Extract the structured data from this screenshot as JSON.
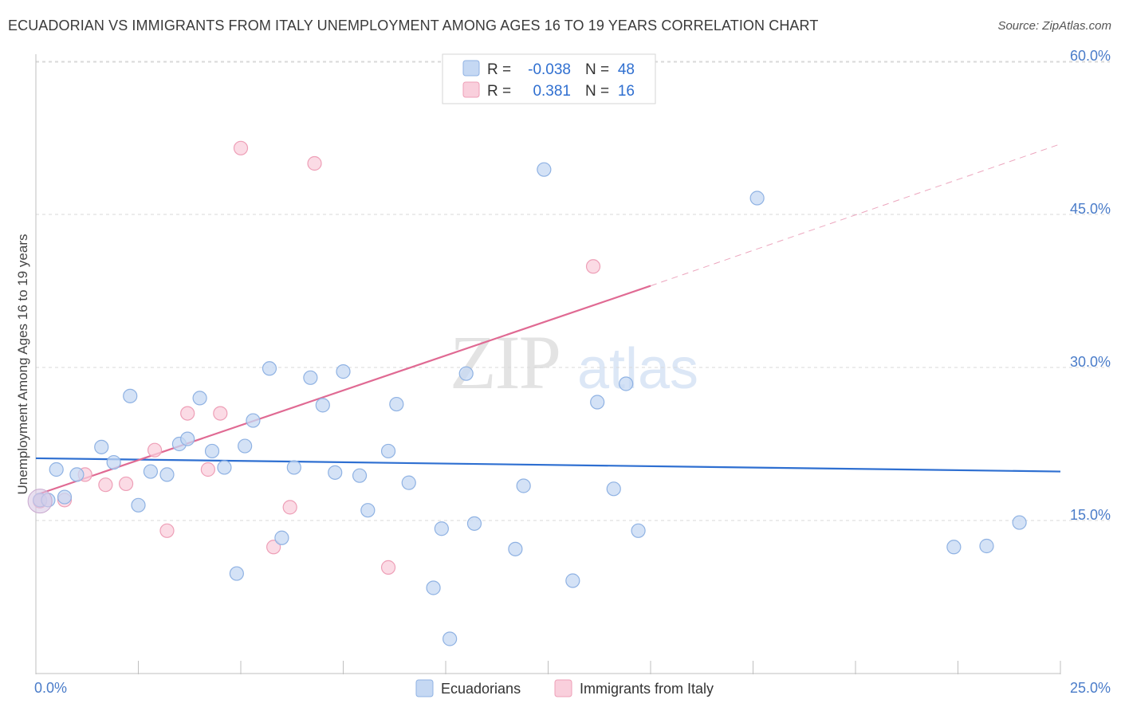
{
  "header": {
    "title": "ECUADORIAN VS IMMIGRANTS FROM ITALY UNEMPLOYMENT AMONG AGES 16 TO 19 YEARS CORRELATION CHART",
    "source": "Source: ZipAtlas.com"
  },
  "watermark": {
    "zip": "ZIP",
    "atlas": "atlas"
  },
  "colors": {
    "blue_fill": "#c5d8f3",
    "blue_stroke": "#8fb2e3",
    "blue_line": "#2e6fd1",
    "pink_fill": "#f9cfdc",
    "pink_stroke": "#ee9fb7",
    "pink_line": "#e06a93",
    "tick_text": "#4a7cc9",
    "grid": "#d9d9d9"
  },
  "legend": {
    "rows": [
      {
        "r_label": "R =",
        "r_value": "-0.038",
        "n_label": "N =",
        "n_value": "48"
      },
      {
        "r_label": "R =",
        "r_value": "0.381",
        "n_label": "N =",
        "n_value": "16"
      }
    ]
  },
  "chart_data": {
    "type": "scatter",
    "title": "ECUADORIAN VS IMMIGRANTS FROM ITALY UNEMPLOYMENT AMONG AGES 16 TO 19 YEARS CORRELATION CHART",
    "xlabel": "",
    "ylabel": "Unemployment Among Ages 16 to 19 years",
    "xlim": [
      0,
      25
    ],
    "ylim": [
      0,
      60
    ],
    "x_tick_labels": [
      "0.0%",
      "25.0%"
    ],
    "y_ticks": [
      15,
      30,
      45,
      60
    ],
    "y_tick_labels": [
      "15.0%",
      "30.0%",
      "45.0%",
      "60.0%"
    ],
    "grid": true,
    "series": [
      {
        "name": "Ecuadorians",
        "r": -0.038,
        "n": 48,
        "trend": {
          "x": [
            0,
            25
          ],
          "y": [
            21.1,
            19.8
          ],
          "dashed_extension": false
        },
        "points": [
          [
            0.1,
            17.0
          ],
          [
            0.3,
            17.0
          ],
          [
            0.5,
            20.0
          ],
          [
            0.7,
            17.3
          ],
          [
            1.0,
            19.5
          ],
          [
            1.6,
            22.2
          ],
          [
            1.9,
            20.7
          ],
          [
            2.3,
            27.2
          ],
          [
            2.5,
            16.5
          ],
          [
            2.8,
            19.8
          ],
          [
            3.2,
            19.5
          ],
          [
            3.5,
            22.5
          ],
          [
            3.7,
            23.0
          ],
          [
            4.0,
            27.0
          ],
          [
            4.3,
            21.8
          ],
          [
            4.6,
            20.2
          ],
          [
            4.9,
            9.8
          ],
          [
            5.1,
            22.3
          ],
          [
            5.3,
            24.8
          ],
          [
            5.7,
            29.9
          ],
          [
            6.0,
            13.3
          ],
          [
            6.3,
            20.2
          ],
          [
            6.7,
            29.0
          ],
          [
            7.0,
            26.3
          ],
          [
            7.3,
            19.7
          ],
          [
            7.5,
            29.6
          ],
          [
            7.9,
            19.4
          ],
          [
            8.1,
            16.0
          ],
          [
            8.6,
            21.8
          ],
          [
            8.8,
            26.4
          ],
          [
            9.1,
            18.7
          ],
          [
            9.7,
            8.4
          ],
          [
            9.9,
            14.2
          ],
          [
            10.1,
            3.4
          ],
          [
            10.5,
            29.4
          ],
          [
            10.7,
            14.7
          ],
          [
            11.7,
            12.2
          ],
          [
            11.9,
            18.4
          ],
          [
            12.4,
            49.4
          ],
          [
            13.1,
            9.1
          ],
          [
            13.7,
            26.6
          ],
          [
            14.1,
            18.1
          ],
          [
            14.4,
            28.4
          ],
          [
            14.7,
            14.0
          ],
          [
            17.6,
            46.6
          ],
          [
            22.4,
            12.4
          ],
          [
            23.2,
            12.5
          ],
          [
            24.0,
            14.8
          ]
        ]
      },
      {
        "name": "Immigrants from Italy",
        "r": 0.381,
        "n": 16,
        "trend": {
          "x": [
            0,
            15
          ],
          "y": [
            17.5,
            38.0
          ],
          "dashed_extension": {
            "x": [
              15,
              25
            ],
            "y": [
              38.0,
              51.9
            ]
          }
        },
        "points": [
          [
            0.1,
            16.9
          ],
          [
            0.7,
            17.0
          ],
          [
            1.2,
            19.5
          ],
          [
            1.7,
            18.5
          ],
          [
            2.2,
            18.6
          ],
          [
            2.9,
            21.9
          ],
          [
            3.2,
            14.0
          ],
          [
            3.7,
            25.5
          ],
          [
            4.2,
            20.0
          ],
          [
            4.5,
            25.5
          ],
          [
            5.0,
            51.5
          ],
          [
            5.8,
            12.4
          ],
          [
            6.2,
            16.3
          ],
          [
            6.8,
            50.0
          ],
          [
            8.6,
            10.4
          ],
          [
            13.6,
            39.9
          ]
        ]
      }
    ]
  },
  "bottom_legend": {
    "items": [
      {
        "label": "Ecuadorians"
      },
      {
        "label": "Immigrants from Italy"
      }
    ]
  }
}
